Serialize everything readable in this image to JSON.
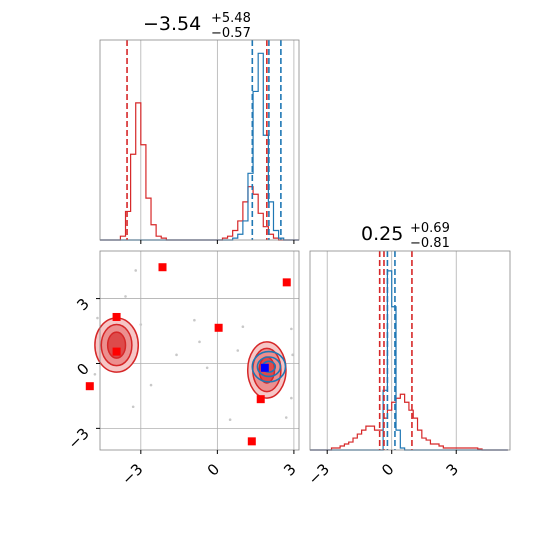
{
  "chart_data": {
    "type": "corner",
    "parameters": [
      {
        "title": "−3.54",
        "upper_err": "+5.48",
        "lower_err": "−0.57",
        "range": [
          -4.6,
          3.2
        ]
      },
      {
        "title": "0.25",
        "upper_err": "+0.69",
        "lower_err": "−0.81",
        "range": [
          -3.8,
          5.5
        ]
      }
    ],
    "colors": {
      "red": "#d62728",
      "blue": "#1f77b4",
      "grid": "#b0b0b0",
      "scatter": "#c8c8c8"
    },
    "ticks": {
      "x_param1": [
        "−3",
        "0",
        "3"
      ],
      "x_param2": [
        "−3",
        "0",
        "3"
      ],
      "y_param2": [
        "3",
        "0",
        "−3"
      ],
      "values": [
        -3,
        0,
        3
      ]
    },
    "hist_param1": {
      "red_vlines": [
        -3.54,
        1.94
      ],
      "blue_vlines": [
        1.37,
        2.02,
        2.49
      ],
      "bins": [
        -4.6,
        -4.4,
        -4.2,
        -4.0,
        -3.8,
        -3.6,
        -3.4,
        -3.2,
        -3.0,
        -2.8,
        -2.6,
        -2.4,
        -2.2,
        -2.0,
        -1.8,
        -1.6,
        -1.4,
        -1.2,
        -1.0,
        -0.8,
        -0.6,
        -0.4,
        -0.2,
        0.0,
        0.2,
        0.4,
        0.6,
        0.8,
        1.0,
        1.2,
        1.4,
        1.6,
        1.8,
        2.0,
        2.2,
        2.4,
        2.6,
        2.8,
        3.0,
        3.2
      ],
      "red_counts": [
        0,
        0,
        0,
        0,
        0.02,
        0.15,
        0.45,
        0.72,
        0.5,
        0.22,
        0.08,
        0.02,
        0.01,
        0,
        0,
        0,
        0,
        0,
        0,
        0,
        0,
        0,
        0,
        0,
        0.01,
        0.02,
        0.05,
        0.1,
        0.2,
        0.28,
        0.24,
        0.14,
        0.07,
        0.03,
        0.01,
        0,
        0,
        0,
        0
      ],
      "blue_counts": [
        0,
        0,
        0,
        0,
        0,
        0,
        0,
        0,
        0,
        0,
        0,
        0,
        0,
        0,
        0,
        0,
        0,
        0,
        0,
        0,
        0,
        0,
        0,
        0,
        0,
        0,
        0.01,
        0.03,
        0.1,
        0.35,
        0.78,
        0.98,
        0.55,
        0.2,
        0.05,
        0.01,
        0,
        0,
        0
      ],
      "ymax": 1.05
    },
    "hist_param2": {
      "red_vlines": [
        -0.56,
        -0.36,
        0.94
      ],
      "blue_vlines": [
        -0.2,
        0.15
      ],
      "bins": [
        -3.8,
        -3.6,
        -3.4,
        -3.2,
        -3.0,
        -2.8,
        -2.6,
        -2.4,
        -2.2,
        -2.0,
        -1.8,
        -1.6,
        -1.4,
        -1.2,
        -1.0,
        -0.8,
        -0.6,
        -0.4,
        -0.2,
        0.0,
        0.2,
        0.4,
        0.6,
        0.8,
        1.0,
        1.2,
        1.4,
        1.6,
        1.8,
        2.0,
        2.2,
        2.4,
        2.6,
        2.8,
        3.0,
        3.2,
        3.4,
        3.6,
        3.8,
        4.0,
        4.2,
        4.4,
        4.6,
        4.8,
        5.0,
        5.2,
        5.4
      ],
      "red_counts": [
        0,
        0,
        0,
        0,
        0,
        0.01,
        0.01,
        0.02,
        0.03,
        0.04,
        0.06,
        0.08,
        0.1,
        0.12,
        0.12,
        0.1,
        0.1,
        0.16,
        0.2,
        0.24,
        0.26,
        0.28,
        0.24,
        0.2,
        0.16,
        0.1,
        0.06,
        0.05,
        0.03,
        0.03,
        0.02,
        0.01,
        0.01,
        0.01,
        0.01,
        0.01,
        0.01,
        0.01,
        0.01,
        0.005,
        0,
        0,
        0,
        0,
        0,
        0
      ],
      "blue_counts": [
        0,
        0,
        0,
        0,
        0,
        0,
        0,
        0,
        0,
        0,
        0,
        0,
        0,
        0,
        0,
        0,
        0,
        0.3,
        0.9,
        0.72,
        0.1,
        0.01,
        0,
        0,
        0,
        0,
        0,
        0,
        0,
        0,
        0,
        0,
        0,
        0,
        0,
        0,
        0,
        0,
        0,
        0,
        0,
        0,
        0,
        0,
        0,
        0
      ],
      "ymax": 1.0
    },
    "joint": {
      "red_contours": [
        {
          "center": [
            -3.95,
            0.85
          ],
          "radii": [
            [
              0.85,
              1.25
            ],
            [
              0.6,
              0.95
            ],
            [
              0.35,
              0.6
            ]
          ]
        },
        {
          "center": [
            1.94,
            -0.3
          ],
          "radii": [
            [
              0.75,
              1.3
            ],
            [
              0.55,
              1.0
            ],
            [
              0.3,
              0.6
            ]
          ]
        }
      ],
      "blue_contours": [
        {
          "center": [
            2.02,
            -0.15
          ],
          "radii": [
            [
              0.65,
              0.7
            ],
            [
              0.45,
              0.45
            ],
            [
              0.25,
              0.25
            ]
          ]
        }
      ],
      "red_points": [
        [
          -2.15,
          4.45
        ],
        [
          2.72,
          3.75
        ],
        [
          -3.95,
          2.15
        ],
        [
          0.05,
          1.65
        ],
        [
          -3.95,
          0.55
        ],
        [
          -5.0,
          -1.05
        ],
        [
          1.7,
          -1.65
        ],
        [
          1.35,
          -3.6
        ]
      ],
      "blue_point": [
        1.86,
        -0.2
      ],
      "scatter": [
        [
          -3.2,
          4.3
        ],
        [
          -3.6,
          3.1
        ],
        [
          -4.7,
          2.1
        ],
        [
          -3.3,
          -2.0
        ],
        [
          -4.8,
          -0.5
        ],
        [
          -3.0,
          1.8
        ],
        [
          -1.6,
          0.4
        ],
        [
          -0.7,
          1.0
        ],
        [
          -0.4,
          -0.2
        ],
        [
          0.8,
          0.6
        ],
        [
          2.9,
          -1.6
        ],
        [
          2.9,
          1.6
        ],
        [
          0.5,
          -2.6
        ],
        [
          2.7,
          -2.5
        ],
        [
          -2.6,
          -1.0
        ],
        [
          -0.9,
          2.0
        ],
        [
          2.95,
          0.4
        ],
        [
          1.0,
          1.7
        ]
      ]
    }
  }
}
